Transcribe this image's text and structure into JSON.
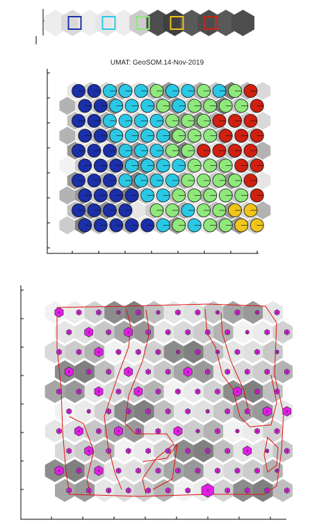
{
  "chart_data": [
    {
      "type": "heatmap",
      "name": "cluster-colorbar",
      "title": "",
      "hex_shades": [
        0.93,
        0.85,
        0.93,
        0.9,
        0.93,
        0.8,
        0.3,
        0.25,
        0.35,
        0.3,
        0.35,
        0.3
      ],
      "legend_squares": [
        {
          "cell": 1,
          "color": "#1a2fa8"
        },
        {
          "cell": 3,
          "color": "#29c9e6"
        },
        {
          "cell": 5,
          "color": "#8ee87a"
        },
        {
          "cell": 7,
          "color": "#f0c419"
        },
        {
          "cell": 9,
          "color": "#d02010"
        }
      ]
    },
    {
      "type": "scatter",
      "name": "umat-pie-map",
      "title": "UMAT: GeoSOM.14-Nov-2019",
      "cols": 12,
      "rows": 10,
      "ticks_x": 8,
      "ticks_y": 8,
      "colors": {
        "c1": "#1a2fa8",
        "c2": "#29c9e6",
        "c3": "#8ee87a",
        "c4": "#f0c419",
        "c5": "#d02010",
        "edge": "#111111"
      },
      "grid_rows": [
        "BBCCCGCCGCGR",
        "BBCCCGCGGGGR",
        "BBCCCCGGGRRR",
        "BBCCCCGGGRRR",
        "BBBCCCGGRRRR",
        "BBBCCCCGGGRR",
        "BBBCCCCGGGGR",
        "BBBBCCGGGGGR",
        "BBBB.GGCGGYY",
        "BBBBBCGCGGYY"
      ],
      "map_shades": [
        0.9,
        0.8,
        0.85,
        0.7,
        0.9,
        0.75,
        0.6,
        0.85,
        0.7,
        0.8,
        0.5,
        0.75,
        0.85,
        0.7,
        0.9,
        0.8,
        0.6,
        0.85,
        0.9,
        0.7,
        0.6,
        0.8,
        0.7,
        0.5,
        0.8,
        0.9,
        0.75,
        0.85,
        0.7,
        0.95,
        0.8,
        0.9,
        0.75,
        0.6,
        0.55,
        0.7
      ]
    },
    {
      "type": "scatter",
      "name": "hit-map",
      "title": "",
      "cols": 12,
      "rows": 10,
      "ticks_x": 8,
      "ticks_y": 8,
      "marker_color": "#e21ee6",
      "marker_label": "4",
      "contour_color": "#e01010",
      "hit_sizes": [
        [
          2,
          1,
          1,
          0,
          1,
          0,
          1,
          1,
          0,
          1,
          0,
          1
        ],
        [
          1,
          2,
          1,
          2,
          1,
          1,
          1,
          1,
          1,
          0,
          1,
          1
        ],
        [
          1,
          1,
          2,
          1,
          1,
          1,
          0,
          1,
          0,
          1,
          1,
          0
        ],
        [
          2,
          1,
          1,
          2,
          1,
          1,
          2,
          1,
          1,
          1,
          1,
          1
        ],
        [
          1,
          1,
          2,
          1,
          2,
          1,
          1,
          1,
          1,
          2,
          1,
          1
        ],
        [
          1,
          0,
          1,
          1,
          1,
          1,
          1,
          0,
          1,
          1,
          2,
          2
        ],
        [
          1,
          2,
          1,
          2,
          1,
          1,
          2,
          0,
          1,
          0,
          1,
          1
        ],
        [
          1,
          2,
          1,
          1,
          1,
          1,
          1,
          1,
          1,
          2,
          0,
          1
        ],
        [
          2,
          1,
          2,
          1,
          1,
          1,
          1,
          1,
          1,
          1,
          1,
          0
        ],
        [
          1,
          1,
          1,
          1,
          1,
          1,
          1,
          3,
          1,
          1,
          1,
          1
        ]
      ]
    }
  ]
}
